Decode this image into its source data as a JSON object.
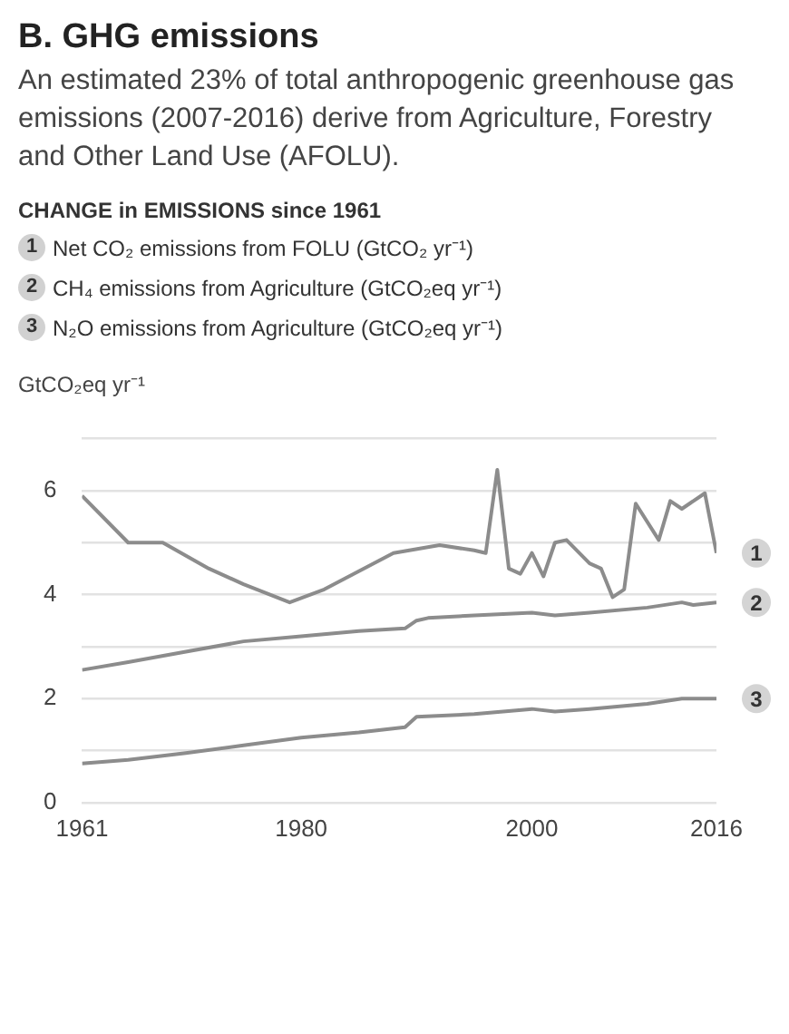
{
  "chart_data": {
    "type": "line",
    "title": "B. GHG emissions",
    "subtitle": "An estimated 23% of total anthropogenic greenhouse gas emissions (2007-2016) derive from Agriculture, Forestry and Other Land Use (AFOLU).",
    "legend_title": "CHANGE in EMISSIONS since 1961",
    "ylabel": "GtCO₂eq yr⁻¹",
    "xlim": [
      1961,
      2016
    ],
    "xticks": [
      1961,
      1980,
      2000,
      2016
    ],
    "ylim": [
      0,
      7
    ],
    "yticks": [
      0,
      {
        "value": 1,
        "label": null
      },
      2,
      {
        "value": 3,
        "label": null
      },
      4,
      {
        "value": 5,
        "label": null
      },
      6,
      {
        "value": 7,
        "label": null
      }
    ],
    "grid": "y",
    "legend": "top",
    "marker": "none",
    "line_style": "solid",
    "series": [
      {
        "name": "Net CO₂ emissions from FOLU (GtCO₂ yr⁻¹)",
        "color": "#8c8c8c",
        "x": [
          1961,
          1965,
          1968,
          1972,
          1975,
          1979,
          1982,
          1985,
          1988,
          1992,
          1995,
          1996,
          1997,
          1998,
          1999,
          2000,
          2001,
          2002,
          2003,
          2005,
          2006,
          2007,
          2008,
          2009,
          2011,
          2012,
          2013,
          2015,
          2016
        ],
        "values": [
          5.9,
          5.0,
          5.0,
          4.5,
          4.2,
          3.85,
          4.1,
          4.45,
          4.8,
          4.95,
          4.85,
          4.8,
          6.4,
          4.5,
          4.4,
          4.8,
          4.35,
          5.0,
          5.05,
          4.6,
          4.5,
          3.95,
          4.1,
          5.75,
          5.05,
          5.8,
          5.65,
          5.95,
          4.8
        ]
      },
      {
        "name": "CH₄ emissions from Agriculture (GtCO₂eq yr⁻¹)",
        "color": "#8c8c8c",
        "x": [
          1961,
          1965,
          1970,
          1975,
          1980,
          1985,
          1989,
          1990,
          1991,
          1995,
          2000,
          2002,
          2005,
          2010,
          2013,
          2014,
          2016
        ],
        "values": [
          2.55,
          2.7,
          2.9,
          3.1,
          3.2,
          3.3,
          3.35,
          3.5,
          3.55,
          3.6,
          3.65,
          3.6,
          3.65,
          3.75,
          3.85,
          3.8,
          3.85
        ]
      },
      {
        "name": "N₂O emissions from Agriculture (GtCO₂eq yr⁻¹)",
        "color": "#8c8c8c",
        "x": [
          1961,
          1965,
          1970,
          1975,
          1980,
          1985,
          1989,
          1990,
          1995,
          2000,
          2002,
          2005,
          2010,
          2013,
          2016
        ],
        "values": [
          0.75,
          0.82,
          0.95,
          1.1,
          1.25,
          1.35,
          1.45,
          1.65,
          1.7,
          1.8,
          1.75,
          1.8,
          1.9,
          2.0,
          2.0
        ]
      }
    ],
    "annotations": [
      "1",
      "2",
      "3"
    ]
  }
}
